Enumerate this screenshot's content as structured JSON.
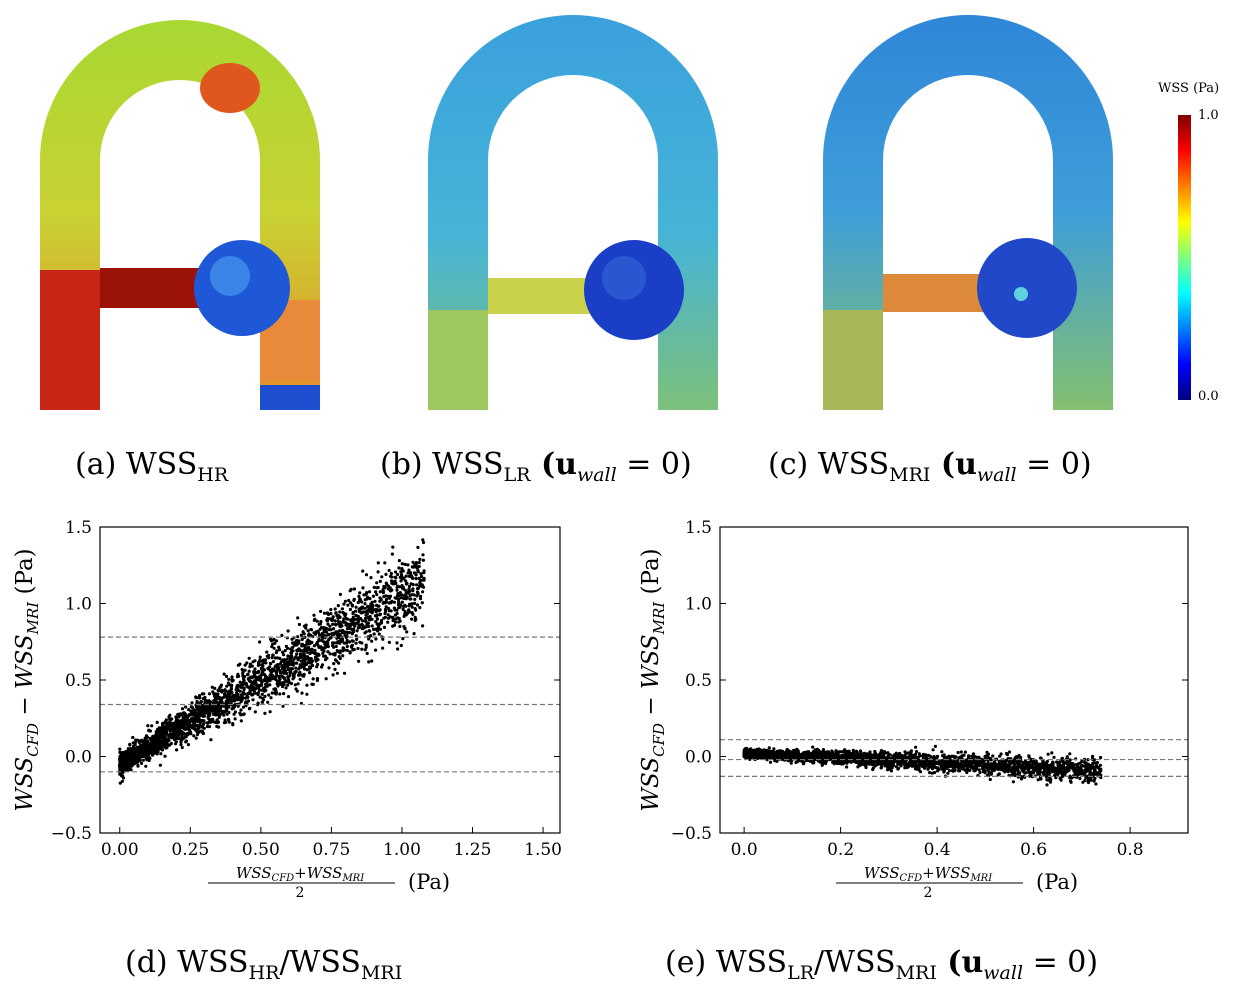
{
  "colormap": {
    "title": "WSS (Pa)",
    "max_label": "1.0",
    "min_label": "0.0",
    "stops": [
      "#00007f",
      "#0000ff",
      "#007fff",
      "#00ffff",
      "#7fff7f",
      "#ffff00",
      "#ff7f00",
      "#ff0000",
      "#7f0000"
    ]
  },
  "panels": {
    "a": {
      "prefix": "(a) WSS",
      "sub": "HR",
      "suffix": ""
    },
    "b": {
      "prefix": "(b) WSS",
      "sub": "LR",
      "suffix": " (u",
      "wall": "wall",
      "eq": " = 0)"
    },
    "c": {
      "prefix": "(c) WSS",
      "sub": "MRI",
      "suffix": " (u",
      "wall": "wall",
      "eq": " = 0)"
    },
    "d": {
      "prefix": "(d) WSS",
      "sub1": "HR",
      "mid": "/WSS",
      "sub2": "MRI",
      "suffix": ""
    },
    "e": {
      "prefix": "(e) WSS",
      "sub1": "LR",
      "mid": "/WSS",
      "sub2": "MRI",
      "suffix": " (u",
      "wall": "wall",
      "eq": " = 0)"
    }
  },
  "chart_data": [
    {
      "type": "scatter",
      "title": "",
      "xlabel": "(WSS_CFD+WSS_MRI)/2 (Pa)",
      "ylabel": "WSS_CFD − WSS_MRI (Pa)",
      "xlim": [
        -0.07,
        1.56
      ],
      "ylim": [
        -0.5,
        1.5
      ],
      "xticks": [
        "0.00",
        "0.25",
        "0.50",
        "0.75",
        "1.00",
        "1.25",
        "1.50"
      ],
      "yticks": [
        "−0.5",
        "0.0",
        "0.5",
        "1.0",
        "1.5"
      ],
      "reference_lines": {
        "mean": 0.34,
        "upper_loa": 0.78,
        "lower_loa": -0.1
      },
      "cloud": {
        "x_range": [
          0.0,
          1.27
        ],
        "trend_slope": 1.1,
        "trend_intercept": -0.05,
        "spread": 0.09
      },
      "grid": false
    },
    {
      "type": "scatter",
      "title": "",
      "xlabel": "(WSS_CFD+WSS_MRI)/2 (Pa)",
      "ylabel": "WSS_CFD − WSS_MRI (Pa)",
      "xlim": [
        -0.05,
        0.92
      ],
      "ylim": [
        -0.5,
        1.5
      ],
      "xticks": [
        "0.0",
        "0.2",
        "0.4",
        "0.6",
        "0.8"
      ],
      "yticks": [
        "−0.5",
        "0.0",
        "0.5",
        "1.0",
        "1.5"
      ],
      "reference_lines": {
        "mean": -0.02,
        "upper_loa": 0.11,
        "lower_loa": -0.13
      },
      "cloud": {
        "x_range": [
          0.0,
          0.87
        ],
        "trend_slope": -0.15,
        "trend_intercept": 0.02,
        "spread": 0.035
      },
      "grid": false
    }
  ]
}
